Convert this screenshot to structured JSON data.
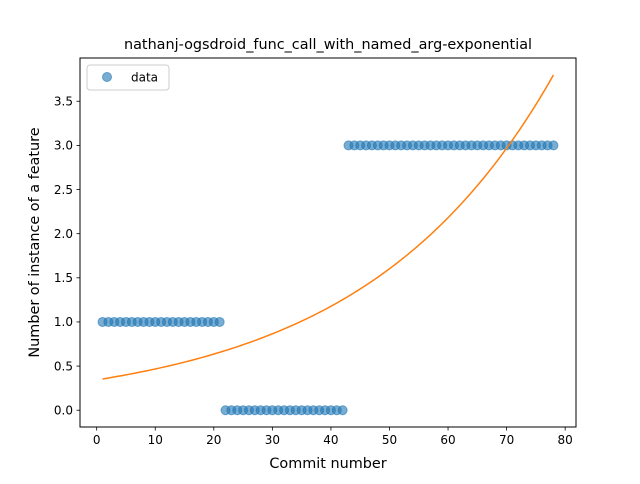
{
  "chart_data": {
    "type": "scatter",
    "title": "nathanj-ogsdroid_func_call_with_named_arg-exponential",
    "xlabel": "Commit number",
    "ylabel": "Number of instance of a feature",
    "xlim": [
      -2.85,
      81.85
    ],
    "ylim": [
      -0.19,
      3.99
    ],
    "xticks": [
      0,
      10,
      20,
      30,
      40,
      50,
      60,
      70,
      80
    ],
    "xtick_labels": [
      "0",
      "10",
      "20",
      "30",
      "40",
      "50",
      "60",
      "70",
      "80"
    ],
    "yticks": [
      0.0,
      0.5,
      1.0,
      1.5,
      2.0,
      2.5,
      3.0,
      3.5
    ],
    "ytick_labels": [
      "0.0",
      "0.5",
      "1.0",
      "1.5",
      "2.0",
      "2.5",
      "3.0",
      "3.5"
    ],
    "grid": false,
    "legend": {
      "position": "top-left",
      "entries": [
        "data"
      ]
    },
    "series": [
      {
        "name": "data",
        "kind": "scatter",
        "color": "#1f77b4",
        "alpha": 0.6,
        "x": [
          1,
          2,
          3,
          4,
          5,
          6,
          7,
          8,
          9,
          10,
          11,
          12,
          13,
          14,
          15,
          16,
          17,
          18,
          19,
          20,
          21,
          22,
          23,
          24,
          25,
          26,
          27,
          28,
          29,
          30,
          31,
          32,
          33,
          34,
          35,
          36,
          37,
          38,
          39,
          40,
          41,
          42,
          43,
          44,
          45,
          46,
          47,
          48,
          49,
          50,
          51,
          52,
          53,
          54,
          55,
          56,
          57,
          58,
          59,
          60,
          61,
          62,
          63,
          64,
          65,
          66,
          67,
          68,
          69,
          70,
          71,
          72,
          73,
          74,
          75,
          76,
          77,
          78
        ],
        "y": [
          1,
          1,
          1,
          1,
          1,
          1,
          1,
          1,
          1,
          1,
          1,
          1,
          1,
          1,
          1,
          1,
          1,
          1,
          1,
          1,
          1,
          0,
          0,
          0,
          0,
          0,
          0,
          0,
          0,
          0,
          0,
          0,
          0,
          0,
          0,
          0,
          0,
          0,
          0,
          0,
          0,
          0,
          3,
          3,
          3,
          3,
          3,
          3,
          3,
          3,
          3,
          3,
          3,
          3,
          3,
          3,
          3,
          3,
          3,
          3,
          3,
          3,
          3,
          3,
          3,
          3,
          3,
          3,
          3,
          3,
          3,
          3,
          3,
          3,
          3,
          3,
          3,
          3
        ]
      },
      {
        "name": "",
        "kind": "line",
        "color": "#ff7f0e",
        "model": "exponential",
        "a": 0.3434,
        "b": 0.03081,
        "x_range": [
          1,
          78
        ]
      }
    ]
  }
}
